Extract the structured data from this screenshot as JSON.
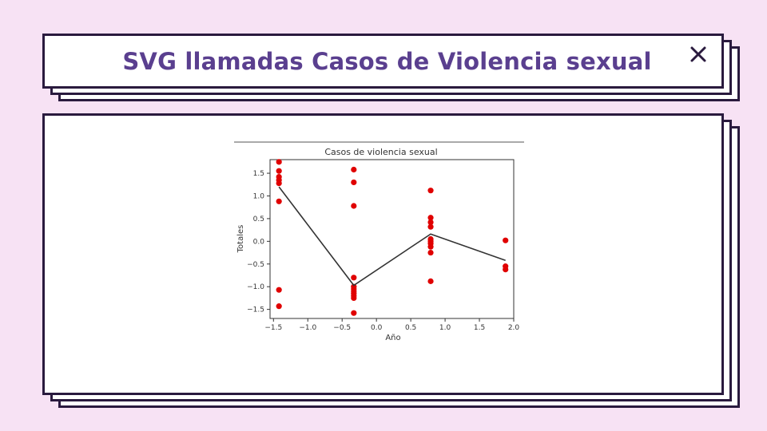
{
  "header": {
    "title": "SVG llamadas Casos de Violencia sexual"
  },
  "colors": {
    "background": "#f7e2f4",
    "border": "#2a1a3e",
    "title": "#5a3f8f",
    "points": "#e00000",
    "line": "#333333"
  },
  "icons": {
    "close": "close-icon"
  },
  "chart_data": {
    "type": "scatter",
    "title": "Casos de violencia sexual",
    "xlabel": "Año",
    "ylabel": "Totales",
    "xlim": [
      -1.55,
      2.0
    ],
    "ylim": [
      -1.7,
      1.8
    ],
    "xticks": [
      "−1.5",
      "−1.0",
      "−0.5",
      "0.0",
      "0.5",
      "1.0",
      "1.5",
      "2.0"
    ],
    "yticks": [
      "1.5",
      "1.0",
      "0.5",
      "0.0",
      "−0.5",
      "−1.0",
      "−1.5"
    ],
    "series": [
      {
        "type": "scatter",
        "color": "#e00000",
        "points": [
          [
            -1.42,
            1.75
          ],
          [
            -1.42,
            1.55
          ],
          [
            -1.42,
            1.42
          ],
          [
            -1.42,
            1.35
          ],
          [
            -1.42,
            1.28
          ],
          [
            -1.42,
            0.88
          ],
          [
            -1.42,
            -1.07
          ],
          [
            -1.42,
            -1.43
          ],
          [
            -0.33,
            1.58
          ],
          [
            -0.33,
            1.3
          ],
          [
            -0.33,
            0.78
          ],
          [
            -0.33,
            -0.8
          ],
          [
            -0.33,
            -1.0
          ],
          [
            -0.33,
            -1.05
          ],
          [
            -0.33,
            -1.1
          ],
          [
            -0.33,
            -1.15
          ],
          [
            -0.33,
            -1.2
          ],
          [
            -0.33,
            -1.25
          ],
          [
            -0.33,
            -1.58
          ],
          [
            0.79,
            1.12
          ],
          [
            0.79,
            0.52
          ],
          [
            0.79,
            0.42
          ],
          [
            0.79,
            0.32
          ],
          [
            0.79,
            0.05
          ],
          [
            0.79,
            0.0
          ],
          [
            0.79,
            -0.05
          ],
          [
            0.79,
            -0.12
          ],
          [
            0.79,
            -0.25
          ],
          [
            0.79,
            -0.88
          ],
          [
            1.88,
            0.02
          ],
          [
            1.88,
            -0.55
          ],
          [
            1.88,
            -0.62
          ]
        ]
      },
      {
        "type": "line",
        "color": "#333333",
        "points": [
          [
            -1.42,
            1.2
          ],
          [
            -0.33,
            -0.97
          ],
          [
            0.79,
            0.16
          ],
          [
            1.88,
            -0.42
          ]
        ]
      }
    ]
  }
}
